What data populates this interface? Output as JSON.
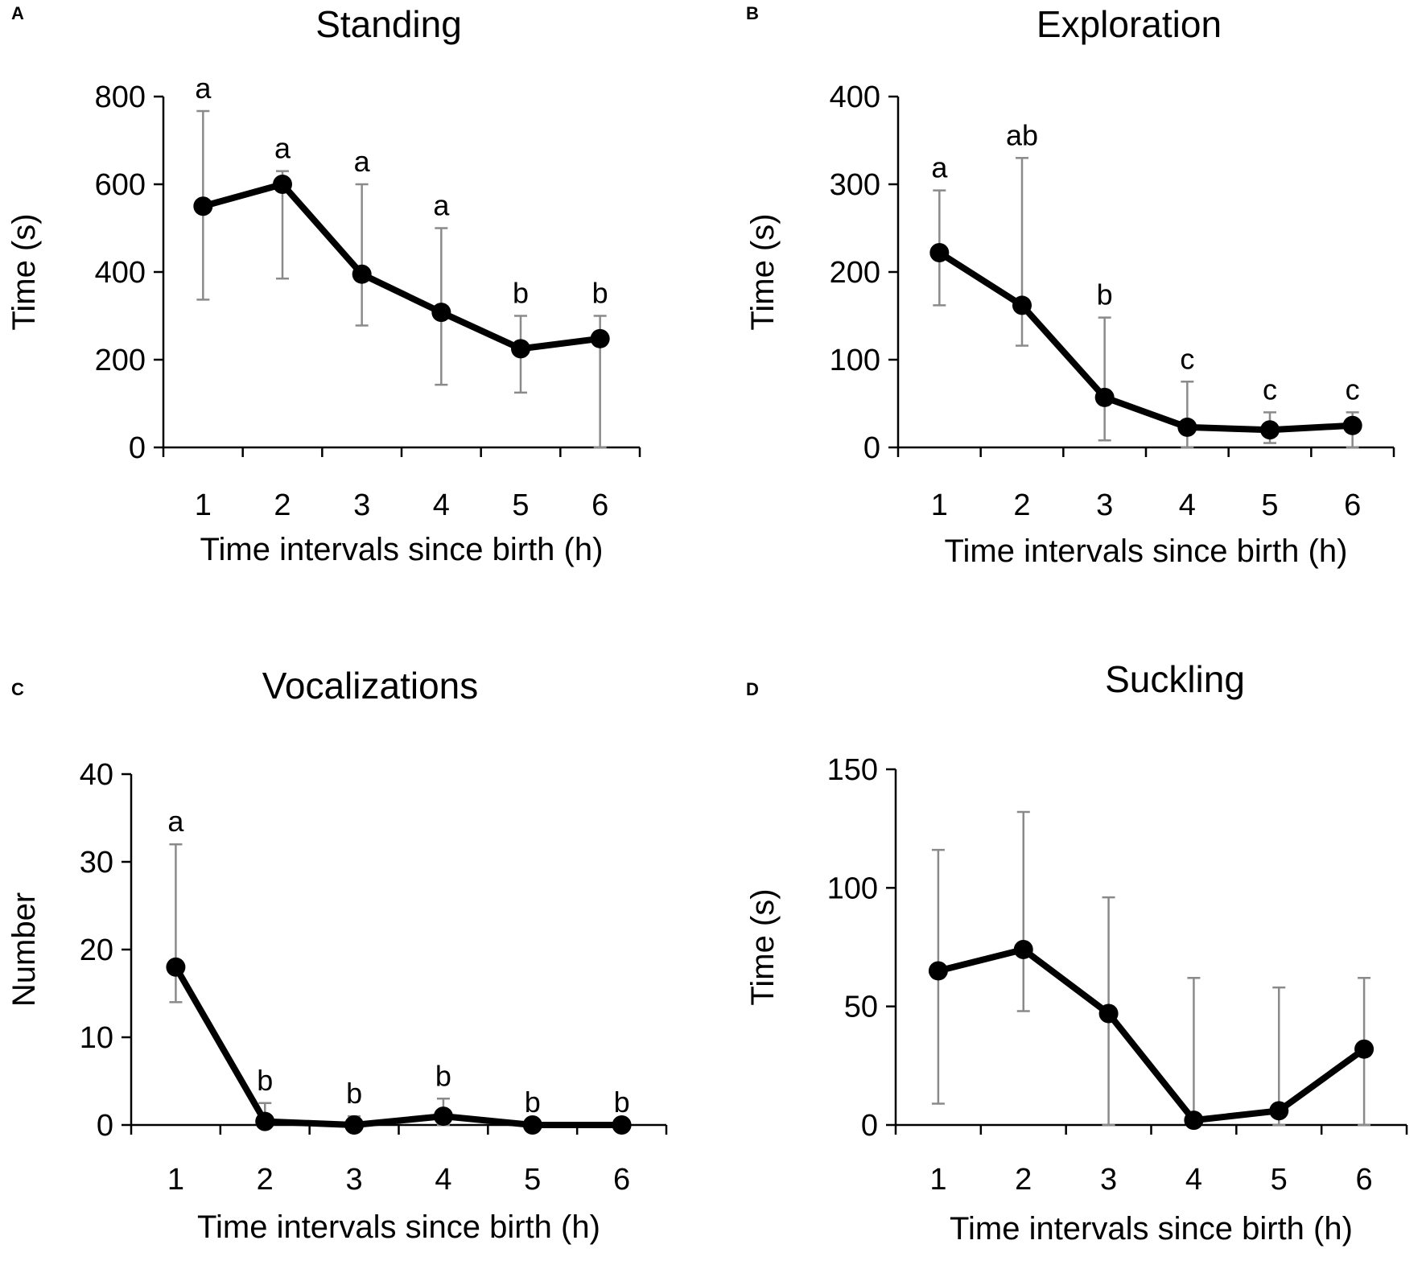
{
  "chart_data": [
    {
      "panel": "A",
      "type": "line",
      "title": "Standing",
      "xlabel": "Time intervals since birth (h)",
      "ylabel": "Time (s)",
      "categories": [
        "1",
        "2",
        "3",
        "4",
        "5",
        "6"
      ],
      "yticks": [
        "0",
        "200",
        "400",
        "600",
        "800"
      ],
      "ylim": [
        0,
        800
      ],
      "values": [
        550,
        600,
        395,
        308,
        225,
        248
      ],
      "err_low": [
        337,
        385,
        278,
        143,
        125,
        0
      ],
      "err_high": [
        767,
        630,
        600,
        500,
        300,
        300
      ],
      "sig_labels": [
        "a",
        "a",
        "a",
        "a",
        "b",
        "b"
      ]
    },
    {
      "panel": "B",
      "type": "line",
      "title": "Exploration",
      "xlabel": "Time intervals since birth (h)",
      "ylabel": "Time (s)",
      "categories": [
        "1",
        "2",
        "3",
        "4",
        "5",
        "6"
      ],
      "yticks": [
        "0",
        "100",
        "200",
        "300",
        "400"
      ],
      "ylim": [
        0,
        400
      ],
      "values": [
        222,
        162,
        57,
        23,
        20,
        25
      ],
      "err_low": [
        162,
        116,
        8,
        0,
        5,
        0
      ],
      "err_high": [
        293,
        330,
        148,
        75,
        40,
        40
      ],
      "sig_labels": [
        "a",
        "ab",
        "b",
        "c",
        "c",
        "c"
      ]
    },
    {
      "panel": "C",
      "type": "line",
      "title": "Vocalizations",
      "xlabel": "Time intervals since birth (h)",
      "ylabel": "Number",
      "categories": [
        "1",
        "2",
        "3",
        "4",
        "5",
        "6"
      ],
      "yticks": [
        "0",
        "10",
        "20",
        "30",
        "40"
      ],
      "ylim": [
        0,
        40
      ],
      "values": [
        18,
        0.4,
        0,
        1,
        0,
        0
      ],
      "err_low": [
        14,
        0,
        0,
        0,
        0,
        0
      ],
      "err_high": [
        32,
        2.5,
        1,
        3,
        0,
        0
      ],
      "sig_labels": [
        "a",
        "b",
        "b",
        "b",
        "b",
        "b"
      ]
    },
    {
      "panel": "D",
      "type": "line",
      "title": "Suckling",
      "xlabel": "Time intervals since birth (h)",
      "ylabel": "Time (s)",
      "categories": [
        "1",
        "2",
        "3",
        "4",
        "5",
        "6"
      ],
      "yticks": [
        "0",
        "50",
        "100",
        "150"
      ],
      "ylim": [
        0,
        150
      ],
      "values": [
        65,
        74,
        47,
        2,
        6,
        32
      ],
      "err_low": [
        9,
        48,
        0,
        0,
        0,
        0
      ],
      "err_high": [
        116,
        132,
        96,
        62,
        58,
        62
      ],
      "sig_labels": []
    }
  ]
}
